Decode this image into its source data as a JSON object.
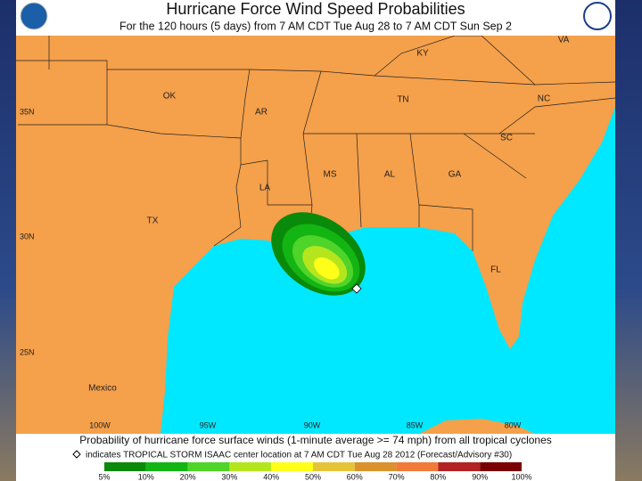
{
  "header": {
    "title": "Hurricane Force Wind Speed Probabilities",
    "subtitle": "For the 120 hours (5 days) from 7 AM CDT Tue Aug 28 to 7 AM CDT Sun Sep 2"
  },
  "map": {
    "labels": [
      "VA",
      "KY",
      "OK",
      "AR",
      "TN",
      "NC",
      "SC",
      "MS",
      "AL",
      "GA",
      "LA",
      "TX",
      "FL",
      "Mexico"
    ]
  },
  "latitudes": [
    "35N",
    "30N",
    "25N"
  ],
  "longitudes": [
    "100W",
    "95W",
    "90W",
    "85W",
    "80W"
  ],
  "footer": {
    "caption": "Probability of hurricane force surface winds (1-minute average >= 74 mph) from all tropical cyclones",
    "storm_note": "indicates TROPICAL STORM ISAAC center location at 7 AM CDT Tue Aug 28 2012 (Forecast/Advisory #30)"
  },
  "legend": {
    "labels": [
      "5%",
      "10%",
      "20%",
      "30%",
      "40%",
      "50%",
      "60%",
      "70%",
      "80%",
      "90%",
      "100%"
    ],
    "colors": [
      "#0a8a0a",
      "#13b513",
      "#4fd42a",
      "#b5e61d",
      "#ffff1a",
      "#e6c43a",
      "#d9922e",
      "#f07a3a",
      "#b22222",
      "#7a0000"
    ]
  }
}
